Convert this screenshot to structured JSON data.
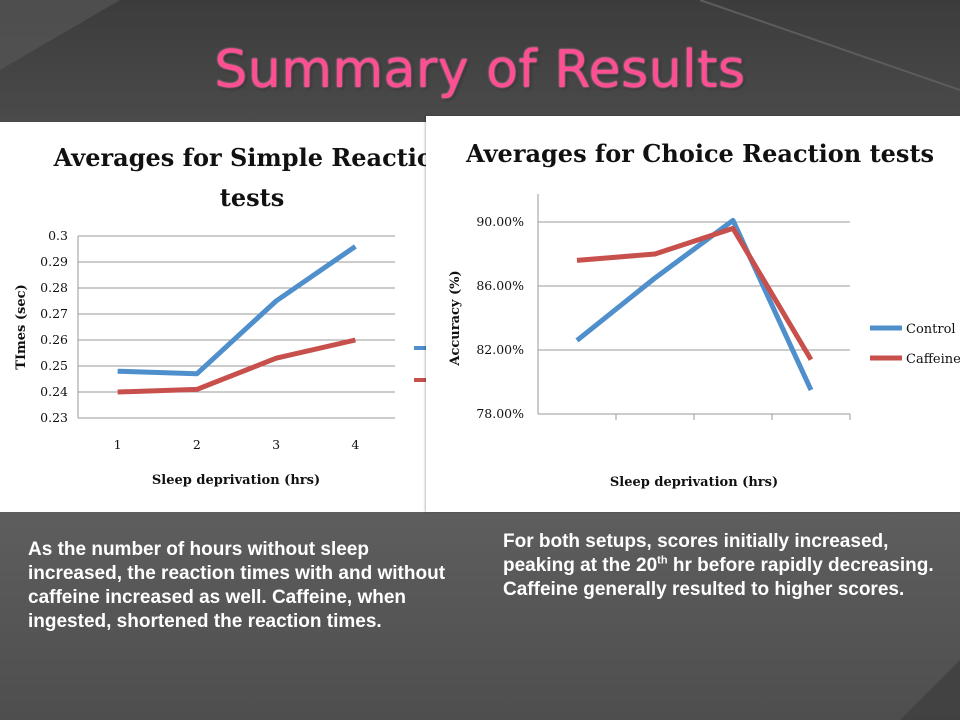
{
  "slide": {
    "title": "Summary of Results",
    "caption_left": "As the number of hours without sleep increased, the reaction times with and without caffeine increased as well. Caffeine, when ingested, shortened the reaction times.",
    "caption_right_pre": "For both setups, scores initially increased, peaking at the 20",
    "caption_right_sup": "th",
    "caption_right_post": " hr before rapidly decreasing. Caffeine generally resulted to higher scores.",
    "colors": {
      "title": "#ff4f93",
      "control": "#4f8fcb",
      "caffeine": "#c8504c"
    }
  },
  "chart_data": [
    {
      "type": "line",
      "title_lines": [
        "Averages for Simple Reaction",
        "tests"
      ],
      "xlabel": "Sleep deprivation (hrs)",
      "ylabel": "TImes (sec)",
      "categories": [
        "1",
        "2",
        "3",
        "4"
      ],
      "y_ticks": [
        "0.23",
        "0.24",
        "0.25",
        "0.26",
        "0.27",
        "0.28",
        "0.29",
        "0.3"
      ],
      "ylim": [
        0.23,
        0.3
      ],
      "grid": true,
      "series": [
        {
          "values": [
            0.248,
            0.247,
            0.275,
            0.296
          ]
        },
        {
          "values": [
            0.24,
            0.241,
            0.253,
            0.26
          ]
        }
      ]
    },
    {
      "type": "line",
      "title": "Averages for Choice Reaction tests",
      "xlabel": "Sleep deprivation (hrs)",
      "ylabel": "Accuracy (%)",
      "y_ticks": [
        "78.00%",
        "82.00%",
        "86.00%",
        "90.00%"
      ],
      "ylim": [
        78,
        90
      ],
      "grid": true,
      "legend_position": "right",
      "series": [
        {
          "name": "Control",
          "values": [
            82.6,
            86.5,
            90.1,
            79.5
          ]
        },
        {
          "name": "Caffeine",
          "values": [
            87.6,
            88.0,
            89.6,
            81.4
          ]
        }
      ]
    }
  ]
}
